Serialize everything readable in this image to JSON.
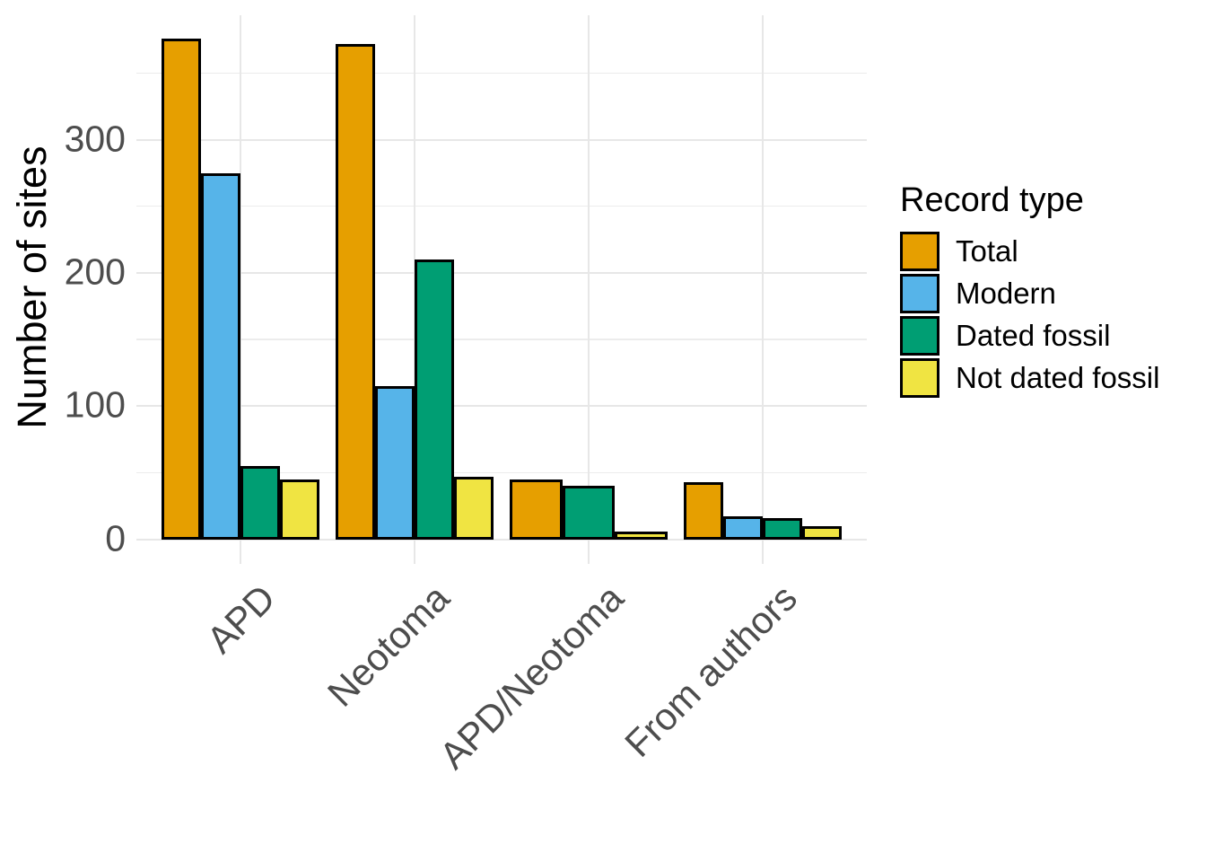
{
  "chart_data": {
    "type": "bar",
    "title": "",
    "xlabel": "",
    "ylabel": "Number of sites",
    "categories": [
      "APD",
      "Neotoma",
      "APD/Neotoma",
      "From authors"
    ],
    "series": [
      {
        "name": "Total",
        "color": "#E69F00",
        "values": [
          376,
          372,
          45,
          43
        ]
      },
      {
        "name": "Modern",
        "color": "#56B4E9",
        "values": [
          275,
          115,
          null,
          17
        ]
      },
      {
        "name": "Dated fossil",
        "color": "#009E73",
        "values": [
          55,
          210,
          40,
          16
        ]
      },
      {
        "name": "Not dated fossil",
        "color": "#F0E442",
        "values": [
          45,
          47,
          6,
          10
        ]
      }
    ],
    "y_ticks": [
      0,
      100,
      200,
      300
    ],
    "y_minor_gridlines": [
      50,
      150,
      250,
      350
    ],
    "ylim": [
      0,
      394
    ],
    "grid": true,
    "legend_title": "Record type",
    "legend_position": "right",
    "bar_border_color": "#000000",
    "major_gridline_color": "#E7E7E7",
    "minor_gridline_color": "#ECECEC",
    "tick_label_color": "#4D4D4D",
    "background_color": "#FFFFFF"
  }
}
